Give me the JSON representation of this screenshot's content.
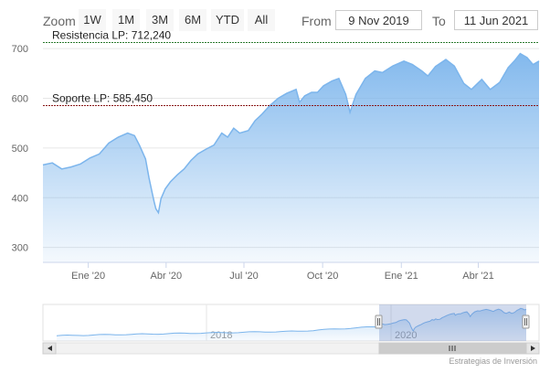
{
  "range_selector": {
    "zoom_label": "Zoom",
    "buttons": [
      "1W",
      "1M",
      "3M",
      "6M",
      "YTD",
      "All"
    ],
    "from_label": "From",
    "from_value": "9 Nov 2019",
    "to_label": "To",
    "to_value": "11 Jun 2021"
  },
  "credit": "Estrategias de Inversión",
  "colors": {
    "line": "#7cb5ec",
    "area_top": "#7cb5ec",
    "resistance": "#2e7d32",
    "support": "#8b1a1a"
  },
  "chart_data": {
    "type": "area",
    "ylim": [
      270,
      715
    ],
    "y_ticks": [
      300,
      400,
      500,
      600,
      700
    ],
    "y_tick_labels": [
      "300",
      "400",
      "500",
      "600",
      "700"
    ],
    "x_ticks": [
      {
        "date": "2020-01-01",
        "label": "Ene '20"
      },
      {
        "date": "2020-04-01",
        "label": "Abr '20"
      },
      {
        "date": "2020-07-01",
        "label": "Jul '20"
      },
      {
        "date": "2020-10-01",
        "label": "Oct '20"
      },
      {
        "date": "2021-01-01",
        "label": "Ene '21"
      },
      {
        "date": "2021-04-01",
        "label": "Abr '21"
      }
    ],
    "x_range": [
      "2019-11-09",
      "2021-06-11"
    ],
    "series": [
      {
        "x": [
          "2019-11-09",
          "2019-11-20",
          "2019-12-01",
          "2019-12-12",
          "2019-12-23",
          "2020-01-03",
          "2020-01-14",
          "2020-01-25",
          "2020-02-05",
          "2020-02-16",
          "2020-02-24",
          "2020-03-01",
          "2020-03-08",
          "2020-03-12",
          "2020-03-16",
          "2020-03-18",
          "2020-03-20",
          "2020-03-23",
          "2020-03-26",
          "2020-03-31",
          "2020-04-06",
          "2020-04-14",
          "2020-04-22",
          "2020-04-30",
          "2020-05-08",
          "2020-05-18",
          "2020-05-27",
          "2020-06-05",
          "2020-06-12",
          "2020-06-19",
          "2020-06-26",
          "2020-07-06",
          "2020-07-14",
          "2020-07-22",
          "2020-07-31",
          "2020-08-10",
          "2020-08-20",
          "2020-08-31",
          "2020-09-04",
          "2020-09-10",
          "2020-09-18",
          "2020-09-25",
          "2020-10-02",
          "2020-10-12",
          "2020-10-20",
          "2020-10-28",
          "2020-11-02",
          "2020-11-09",
          "2020-11-20",
          "2020-12-01",
          "2020-12-10",
          "2020-12-22",
          "2021-01-04",
          "2021-01-14",
          "2021-01-25",
          "2021-02-01",
          "2021-02-10",
          "2021-02-22",
          "2021-03-04",
          "2021-03-15",
          "2021-03-24",
          "2021-04-05",
          "2021-04-15",
          "2021-04-26",
          "2021-05-06",
          "2021-05-13",
          "2021-05-20",
          "2021-05-28",
          "2021-06-04",
          "2021-06-11"
        ],
        "y": [
          466,
          470,
          458,
          462,
          468,
          480,
          488,
          510,
          522,
          530,
          525,
          505,
          478,
          440,
          408,
          392,
          378,
          370,
          398,
          418,
          432,
          446,
          458,
          475,
          488,
          498,
          506,
          530,
          522,
          540,
          530,
          535,
          555,
          568,
          585,
          600,
          610,
          618,
          592,
          605,
          612,
          612,
          625,
          635,
          640,
          608,
          572,
          608,
          640,
          655,
          652,
          665,
          675,
          668,
          655,
          645,
          664,
          678,
          665,
          630,
          618,
          638,
          618,
          632,
          662,
          675,
          690,
          682,
          668,
          675
        ]
      }
    ],
    "annotations": [
      {
        "text": "Resistencia LP: 712,240",
        "value": 712.24
      },
      {
        "text": "Soporte LP: 585,450",
        "value": 585.45
      }
    ],
    "navigator": {
      "x_labels": [
        "2018",
        "2020"
      ]
    },
    "grid": true,
    "legend": "none"
  }
}
